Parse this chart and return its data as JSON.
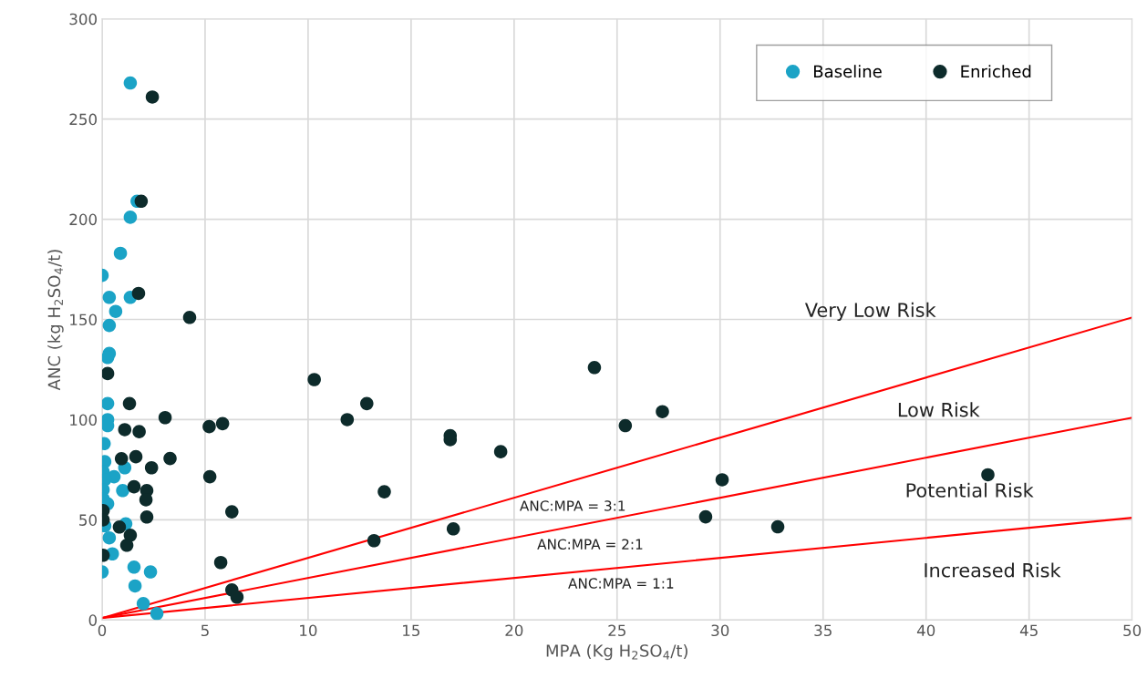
{
  "chart_data": {
    "type": "scatter",
    "xlabel": "MPA (Kg H$_{2}$SO$_{4}$/t)",
    "ylabel": "ANC (kg H$_{2}$SO$_{4}$/t)",
    "xlim": [
      0,
      50
    ],
    "ylim": [
      0,
      300
    ],
    "xticks": [
      0,
      5,
      10,
      15,
      20,
      25,
      30,
      35,
      40,
      45,
      50
    ],
    "yticks": [
      0,
      50,
      100,
      150,
      200,
      250,
      300
    ],
    "grid": true,
    "legend": "top right",
    "series": [
      {
        "name": "Baseline",
        "color": "#1ba3c6",
        "marker": "circle",
        "x": [
          1.37,
          1.7,
          1.37,
          0.89,
          0,
          0.35,
          0.66,
          0.35,
          1.37,
          0.35,
          0.27,
          0.27,
          0.27,
          0.27,
          0.1,
          0.13,
          0.05,
          0.58,
          0.13,
          1.1,
          0.05,
          0.05,
          0.27,
          1.0,
          0.13,
          0.35,
          1.15,
          0.5,
          0,
          1.55,
          2.35,
          1.6,
          2.0,
          2.66
        ],
        "values": [
          268,
          209,
          201,
          183,
          172,
          161,
          154,
          147,
          161,
          133,
          131,
          108,
          100,
          97,
          88,
          79,
          74,
          71.5,
          70,
          76,
          65,
          60.5,
          58,
          64.6,
          47,
          41,
          48,
          33,
          24,
          26.4,
          24,
          17,
          8.2,
          3.2
        ]
      },
      {
        "name": "Enriched",
        "color": "#0d2b2b",
        "marker": "circle",
        "x": [
          2.44,
          1.9,
          1.77,
          4.25,
          0.27,
          1.33,
          3.06,
          1.1,
          1.8,
          5.2,
          5.85,
          0.94,
          1.64,
          3.3,
          2.4,
          1.55,
          2.17,
          2.13,
          5.23,
          0.05,
          0.05,
          2.17,
          6.3,
          0.84,
          1.37,
          1.2,
          0.05,
          5.76,
          6.3,
          6.55,
          10.3,
          12.85,
          11.9,
          16.9,
          16.9,
          19.35,
          13.7,
          17.05,
          13.2,
          23.9,
          25.4,
          27.2,
          30.1,
          29.3,
          32.8,
          43
        ],
        "values": [
          261,
          209,
          163,
          151,
          123,
          108,
          101,
          95,
          94,
          96.5,
          98,
          80.5,
          81.5,
          80.6,
          76,
          66.5,
          64.6,
          60,
          71.5,
          54.6,
          50,
          51.4,
          54,
          46.4,
          42.3,
          37.3,
          32.3,
          28.7,
          15,
          11.4,
          120,
          108,
          100,
          92,
          90,
          84,
          64,
          45.5,
          39.6,
          126,
          97,
          104,
          70,
          51.5,
          46.5,
          72.5
        ]
      },
      {
        "type": "line",
        "color": "#ff0000",
        "x": [
          0,
          50
        ],
        "values": [
          1,
          151
        ]
      },
      {
        "type": "line",
        "color": "#ff0000",
        "x": [
          0,
          50
        ],
        "values": [
          1,
          101
        ]
      },
      {
        "type": "line",
        "color": "#ff0000",
        "x": [
          0,
          50
        ],
        "values": [
          1,
          51
        ]
      }
    ],
    "annotations": [
      "Very Low Risk",
      "Low Risk",
      "Potential Risk",
      "Increased Risk",
      "ANC:MPA = 3:1",
      "ANC:MPA = 2:1",
      "ANC:MPA = 1:1"
    ]
  }
}
